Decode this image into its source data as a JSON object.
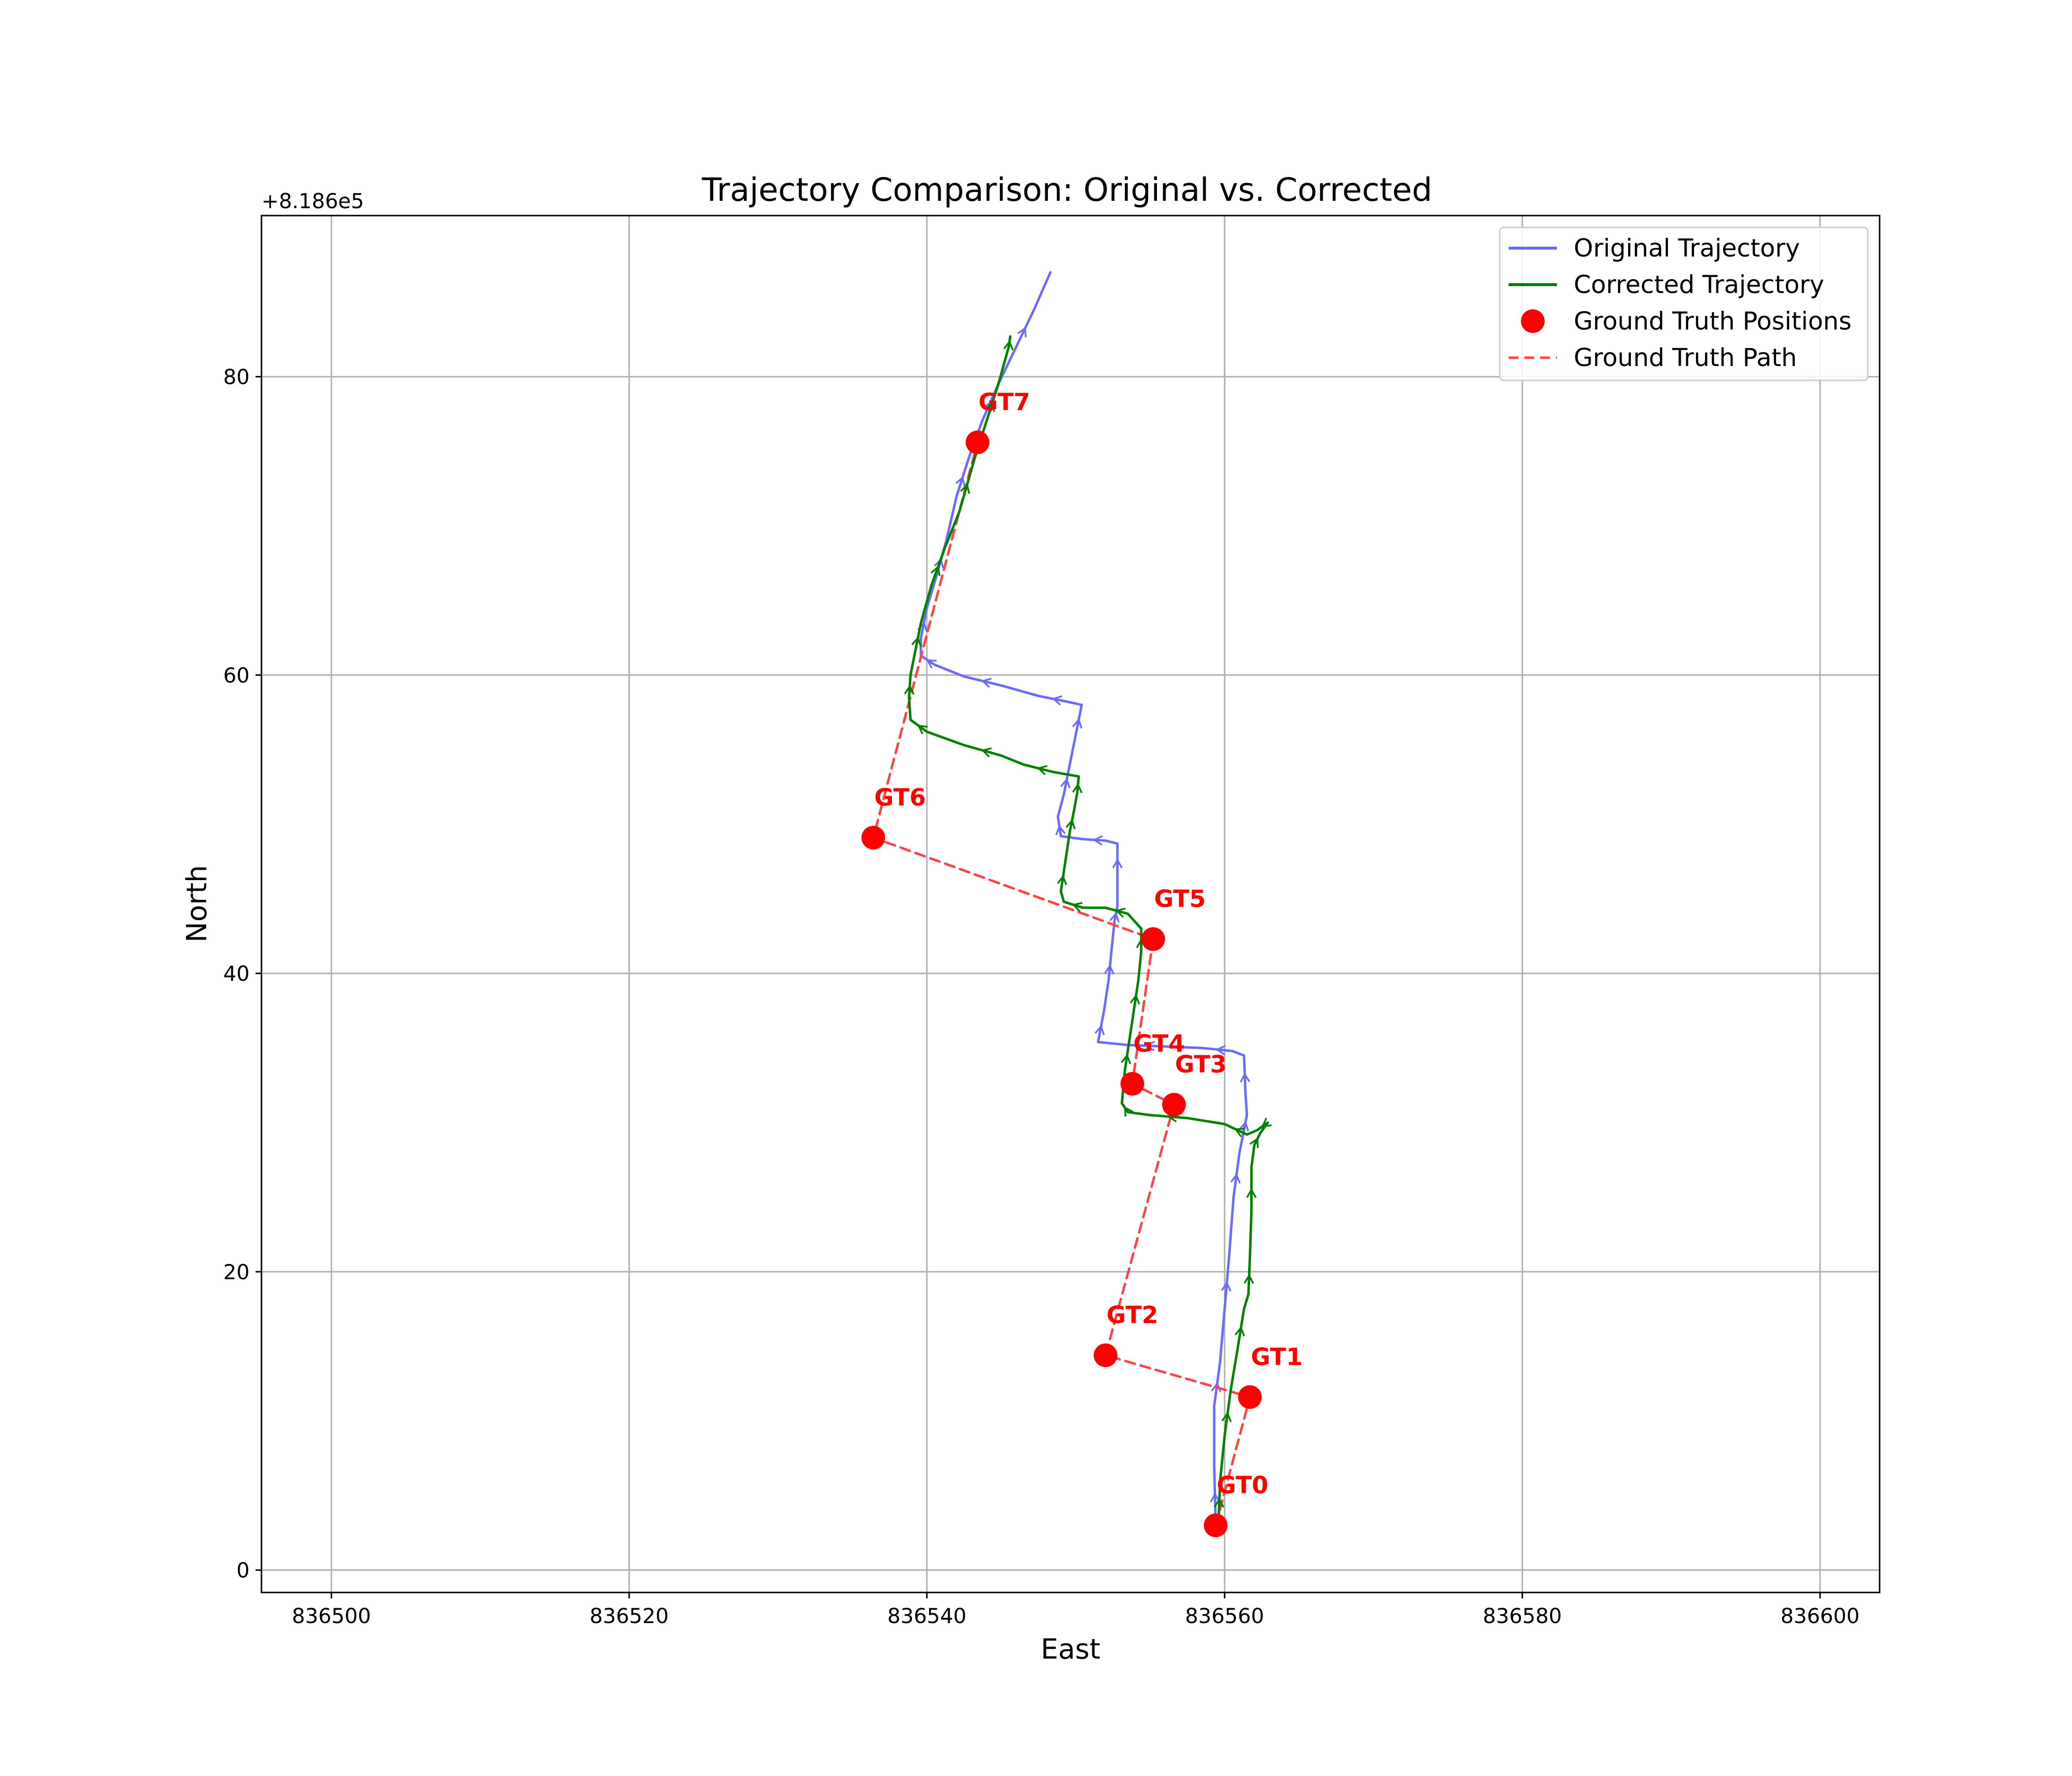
{
  "chart_data": {
    "type": "line",
    "title": "Trajectory Comparison: Original vs. Corrected",
    "xlabel": "East",
    "ylabel": "North",
    "y_offset_label": "+8.186e5",
    "xlim": [
      836495.3,
      836604.0
    ],
    "ylim": [
      -1.5,
      90.8
    ],
    "x_ticks": [
      836500,
      836520,
      836540,
      836560,
      836580,
      836600
    ],
    "x_tick_labels": [
      "836500",
      "836520",
      "836540",
      "836560",
      "836580",
      "836600"
    ],
    "y_ticks": [
      0,
      20,
      40,
      60,
      80
    ],
    "y_tick_labels": [
      "0",
      "20",
      "40",
      "60",
      "80"
    ],
    "grid": true,
    "legend_position": "top-right",
    "legend": [
      {
        "label": "Original Trajectory",
        "style": "line",
        "color": "#6b6bff"
      },
      {
        "label": "Corrected Trajectory",
        "style": "line",
        "color": "#008000"
      },
      {
        "label": "Ground Truth Positions",
        "style": "marker",
        "color": "#ff0000"
      },
      {
        "label": "Ground Truth Path",
        "style": "dashed",
        "color": "#ff4444"
      }
    ],
    "series": [
      {
        "name": "Original Trajectory",
        "color": "#6b6bff",
        "style": "solid-arrows",
        "points": [
          [
            836559.4,
            3.2
          ],
          [
            836559.3,
            7.0
          ],
          [
            836559.3,
            11.0
          ],
          [
            836559.7,
            14.0
          ],
          [
            836560.0,
            17.5
          ],
          [
            836560.3,
            21.0
          ],
          [
            836560.6,
            25.0
          ],
          [
            836561.0,
            28.0
          ],
          [
            836561.3,
            29.5
          ],
          [
            836561.5,
            30.5
          ],
          [
            836561.4,
            32.0
          ],
          [
            836561.3,
            34.5
          ],
          [
            836560.5,
            34.8
          ],
          [
            836558.5,
            35.0
          ],
          [
            836556.0,
            35.1
          ],
          [
            836553.5,
            35.2
          ],
          [
            836551.5,
            35.4
          ],
          [
            836551.9,
            37.5
          ],
          [
            836552.2,
            39.5
          ],
          [
            836552.4,
            41.5
          ],
          [
            836552.6,
            43.5
          ],
          [
            836552.8,
            44.5
          ],
          [
            836552.8,
            46.5
          ],
          [
            836552.8,
            48.7
          ],
          [
            836552.0,
            48.9
          ],
          [
            836550.5,
            49.0
          ],
          [
            836549.0,
            49.2
          ],
          [
            836548.8,
            50.5
          ],
          [
            836549.2,
            52.0
          ],
          [
            836549.6,
            54.0
          ],
          [
            836550.0,
            56.0
          ],
          [
            836550.4,
            58.0
          ],
          [
            836549.5,
            58.2
          ],
          [
            836547.5,
            58.6
          ],
          [
            836545.0,
            59.3
          ],
          [
            836542.5,
            59.9
          ],
          [
            836540.5,
            60.7
          ],
          [
            836539.6,
            61.3
          ],
          [
            836539.6,
            62.5
          ],
          [
            836540.0,
            64.5
          ],
          [
            836540.6,
            66.5
          ],
          [
            836541.3,
            69.0
          ],
          [
            836542.0,
            72.0
          ],
          [
            836542.8,
            74.5
          ],
          [
            836543.7,
            77.0
          ],
          [
            836544.8,
            79.5
          ],
          [
            836546.0,
            82.0
          ],
          [
            836547.2,
            84.5
          ],
          [
            836548.3,
            87.0
          ]
        ]
      },
      {
        "name": "Corrected Trajectory",
        "color": "#008000",
        "style": "solid-arrows",
        "points": [
          [
            836559.6,
            3.5
          ],
          [
            836559.7,
            6.0
          ],
          [
            836560.0,
            9.0
          ],
          [
            836560.4,
            12.0
          ],
          [
            836560.9,
            15.0
          ],
          [
            836561.3,
            17.5
          ],
          [
            836561.6,
            18.5
          ],
          [
            836561.7,
            21.0
          ],
          [
            836561.8,
            24.0
          ],
          [
            836561.8,
            27.0
          ],
          [
            836562.0,
            28.5
          ],
          [
            836562.4,
            29.3
          ],
          [
            836562.9,
            30.0
          ],
          [
            836562.2,
            29.5
          ],
          [
            836561.5,
            29.2
          ],
          [
            836560.0,
            29.9
          ],
          [
            836557.5,
            30.3
          ],
          [
            836555.0,
            30.5
          ],
          [
            836553.5,
            30.7
          ],
          [
            836553.1,
            31.3
          ],
          [
            836553.3,
            33.5
          ],
          [
            836553.6,
            35.5
          ],
          [
            836553.9,
            37.5
          ],
          [
            836554.2,
            39.5
          ],
          [
            836554.4,
            41.5
          ],
          [
            836554.4,
            43.0
          ],
          [
            836553.5,
            44.0
          ],
          [
            836552.0,
            44.4
          ],
          [
            836550.5,
            44.4
          ],
          [
            836549.2,
            44.8
          ],
          [
            836549.0,
            45.5
          ],
          [
            836549.3,
            47.5
          ],
          [
            836549.6,
            49.5
          ],
          [
            836549.9,
            51.0
          ],
          [
            836550.1,
            52.1
          ],
          [
            836550.2,
            53.2
          ],
          [
            836548.5,
            53.5
          ],
          [
            836546.5,
            54.0
          ],
          [
            836545.0,
            54.6
          ],
          [
            836542.5,
            55.3
          ],
          [
            836540.0,
            56.2
          ],
          [
            836538.9,
            57.0
          ],
          [
            836538.8,
            58.5
          ],
          [
            836538.9,
            60.0
          ],
          [
            836539.2,
            61.5
          ],
          [
            836539.6,
            63.5
          ],
          [
            836540.3,
            66.0
          ],
          [
            836541.2,
            68.5
          ],
          [
            836542.2,
            71.0
          ],
          [
            836543.2,
            74.5
          ],
          [
            836544.0,
            77.0
          ],
          [
            836544.8,
            79.5
          ],
          [
            836545.5,
            82.0
          ],
          [
            836545.6,
            82.7
          ]
        ]
      },
      {
        "name": "Ground Truth Path",
        "color": "#ff4444",
        "style": "dashed",
        "points": [
          [
            836559.4,
            3.0
          ],
          [
            836561.7,
            11.6
          ],
          [
            836552.0,
            14.4
          ],
          [
            836556.6,
            31.2
          ],
          [
            836553.8,
            32.6
          ],
          [
            836555.2,
            42.3
          ],
          [
            836536.4,
            49.1
          ],
          [
            836543.4,
            75.6
          ]
        ]
      }
    ],
    "ground_truth_positions": [
      {
        "label": "GT0",
        "x": 836559.4,
        "y": 3.0
      },
      {
        "label": "GT1",
        "x": 836561.7,
        "y": 11.6
      },
      {
        "label": "GT2",
        "x": 836552.0,
        "y": 14.4
      },
      {
        "label": "GT3",
        "x": 836556.6,
        "y": 31.2
      },
      {
        "label": "GT4",
        "x": 836553.8,
        "y": 32.6
      },
      {
        "label": "GT5",
        "x": 836555.2,
        "y": 42.3
      },
      {
        "label": "GT6",
        "x": 836536.4,
        "y": 49.1
      },
      {
        "label": "GT7",
        "x": 836543.4,
        "y": 75.6
      }
    ]
  }
}
